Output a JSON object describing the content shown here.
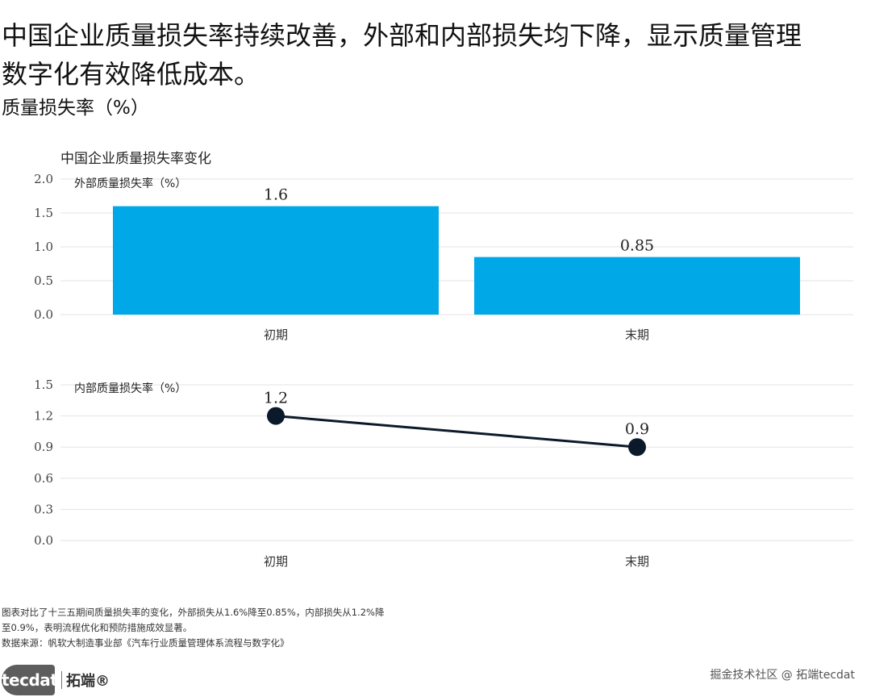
{
  "headline": {
    "line1": "中国企业质量损失率持续改善，外部和内部损失均下降，显示质量管理",
    "line2": "数字化有效降低成本。"
  },
  "subhead": "质量损失率（%）",
  "chart_title": "中国企业质量损失率变化",
  "chart_data": [
    {
      "type": "bar",
      "title": "外部质量损失率（%）",
      "categories": [
        "初期",
        "末期"
      ],
      "values": [
        1.6,
        0.85
      ],
      "value_labels": [
        "1.6",
        "0.85"
      ],
      "ylim": [
        0,
        2.0
      ],
      "yticks": [
        "0.0",
        "0.5",
        "1.0",
        "1.5",
        "2.0"
      ],
      "grid": true,
      "color": "#00A8E8"
    },
    {
      "type": "line",
      "title": "内部质量损失率（%）",
      "categories": [
        "初期",
        "末期"
      ],
      "values": [
        1.2,
        0.9
      ],
      "value_labels": [
        "1.2",
        "0.9"
      ],
      "ylim": [
        0,
        1.5
      ],
      "yticks": [
        "0.0",
        "0.3",
        "0.6",
        "0.9",
        "1.2",
        "1.5"
      ],
      "grid": true,
      "color": "#0b1a2a"
    }
  ],
  "footnote": {
    "line1": "图表对比了十三五期间质量损失率的变化，外部损失从1.6%降至0.85%，内部损失从1.2%降",
    "line2": "至0.9%，表明流程优化和预防措施成效显著。",
    "source": "数据来源：帆软大制造事业部《汽车行业质量管理体系流程与数字化》"
  },
  "logo": {
    "mark": "tecdat",
    "cn": "拓端®"
  },
  "watermark": "掘金技术社区 @ 拓端tecdat"
}
